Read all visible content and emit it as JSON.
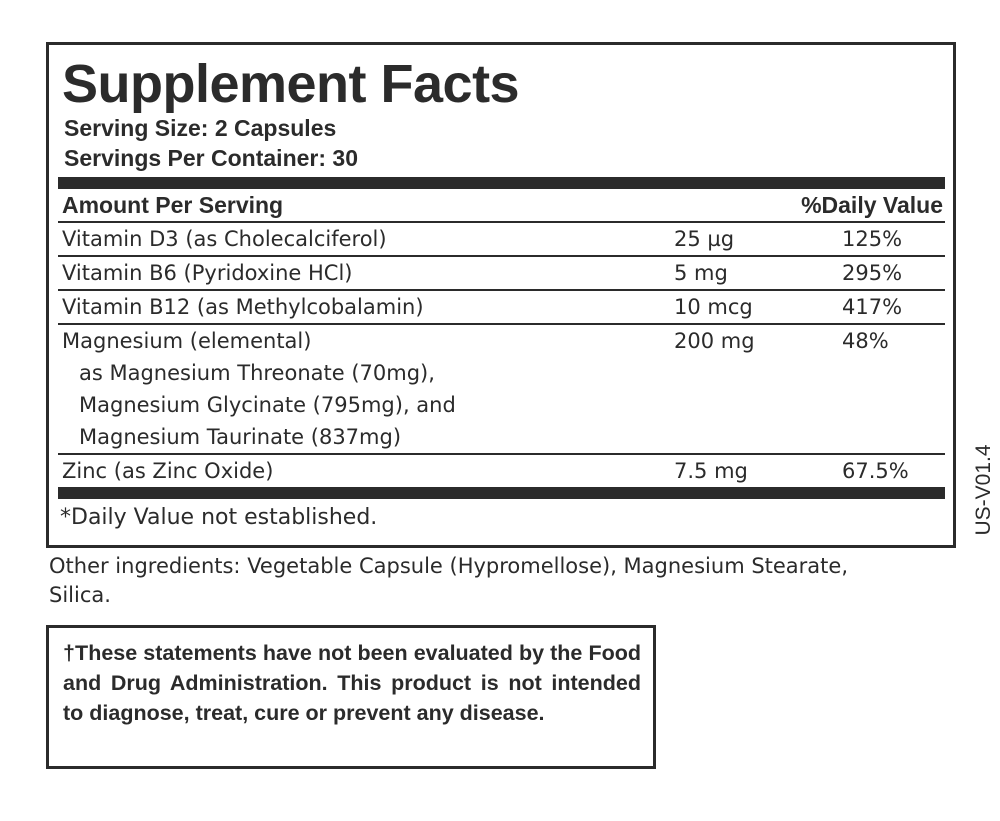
{
  "facts": {
    "title": "Supplement Facts",
    "serving_size": "Serving Size: 2 Capsules",
    "servings_per_container": "Servings Per Container: 30",
    "header_amount": "Amount Per Serving",
    "header_dv": "%Daily Value",
    "rows": [
      {
        "name": "Vitamin D3 (as Cholecalciferol)",
        "amount": "25 µg",
        "dv": "125%"
      },
      {
        "name": "Vitamin B6 (Pyridoxine HCl)",
        "amount": "5 mg",
        "dv": "295%"
      },
      {
        "name": "Vitamin B12 (as Methylcobalamin)",
        "amount": "10 mcg",
        "dv": "417%"
      },
      {
        "name": "Magnesium (elemental)",
        "amount": "200 mg",
        "dv": "48%",
        "sub": [
          "as Magnesium Threonate (70mg),",
          "Magnesium Glycinate (795mg), and",
          "Magnesium Taurinate (837mg)"
        ]
      },
      {
        "name": "Zinc (as Zinc Oxide)",
        "amount": "7.5 mg",
        "dv": "67.5%"
      }
    ],
    "footnote": "*Daily Value not established."
  },
  "version": "US-V01.4",
  "other_ingredients": "Other ingredients: Vegetable Capsule (Hypromellose), Magnesium Stearate, Silica.",
  "disclaimer": "†These statements have not been evaluated by the Food and Drug Administration. This product is not intended to diagnose, treat, cure or prevent any disease.",
  "colors": {
    "ink": "#2b2b2b",
    "background": "#ffffff"
  }
}
